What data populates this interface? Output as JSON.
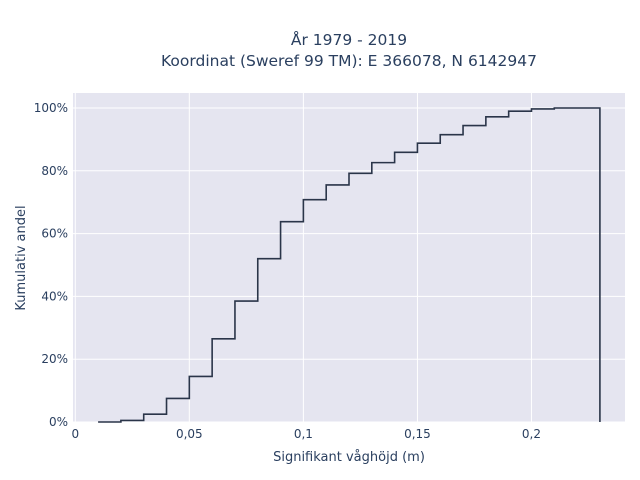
{
  "chart_data": {
    "type": "line",
    "line_shape": "step",
    "title_line1": "År 1979 - 2019",
    "title_line2": "Koordinat (Sweref 99 TM): E 366078, N 6142947",
    "xlabel": "Signifikant våghöjd (m)",
    "ylabel": "Kumulativ andel",
    "xlim": [
      -0.001,
      0.241
    ],
    "ylim": [
      0,
      1.0
    ],
    "x_ticks": [
      0,
      0.05,
      0.1,
      0.15,
      0.2
    ],
    "x_tick_labels": [
      "0",
      "0,05",
      "0,1",
      "0,15",
      "0,2"
    ],
    "y_ticks": [
      0,
      0.2,
      0.4,
      0.6,
      0.8,
      1.0
    ],
    "y_tick_labels": [
      "0%",
      "20%",
      "40%",
      "60%",
      "80%",
      "100%"
    ],
    "grid": true,
    "background": "#e5e5f0",
    "line_color": "#2a3549",
    "series": [
      {
        "x": [
          0.01,
          0.02,
          0.03,
          0.04,
          0.05,
          0.06,
          0.07,
          0.08,
          0.09,
          0.1,
          0.11,
          0.12,
          0.13,
          0.14,
          0.15,
          0.16,
          0.17,
          0.18,
          0.19,
          0.2,
          0.21,
          0.22,
          0.23
        ],
        "y": [
          0.0,
          0.005,
          0.025,
          0.075,
          0.145,
          0.265,
          0.385,
          0.52,
          0.638,
          0.708,
          0.755,
          0.792,
          0.826,
          0.859,
          0.888,
          0.915,
          0.944,
          0.972,
          0.99,
          0.997,
          1.0,
          1.0,
          0.0
        ]
      }
    ]
  }
}
